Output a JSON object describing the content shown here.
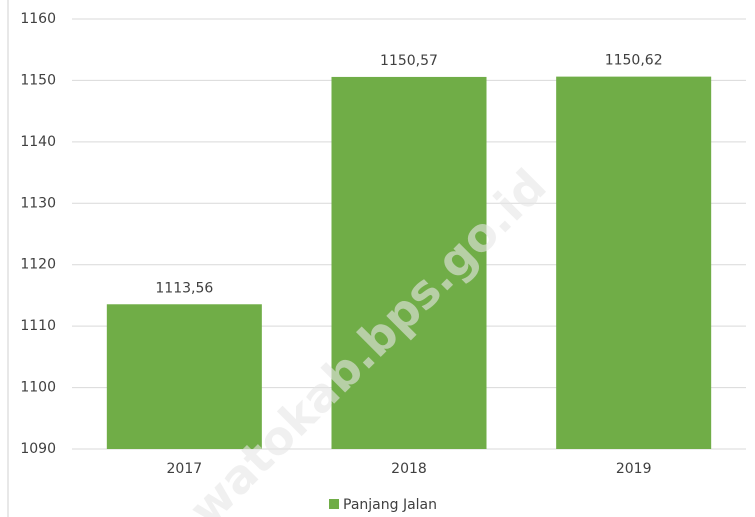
{
  "chart_data": {
    "type": "bar",
    "categories": [
      "2017",
      "2018",
      "2019"
    ],
    "series": [
      {
        "name": "Panjang Jalan",
        "color": "#70ad47",
        "values": [
          1113.56,
          1150.57,
          1150.62
        ],
        "value_labels": [
          "1113,56",
          "1150,57",
          "1150,62"
        ]
      }
    ],
    "ylim": [
      1090,
      1160
    ],
    "yticks": [
      1090,
      1100,
      1110,
      1120,
      1130,
      1140,
      1150,
      1160
    ],
    "grid": true,
    "legend": "bottom",
    "watermark": "watokab.bps.go.id"
  }
}
